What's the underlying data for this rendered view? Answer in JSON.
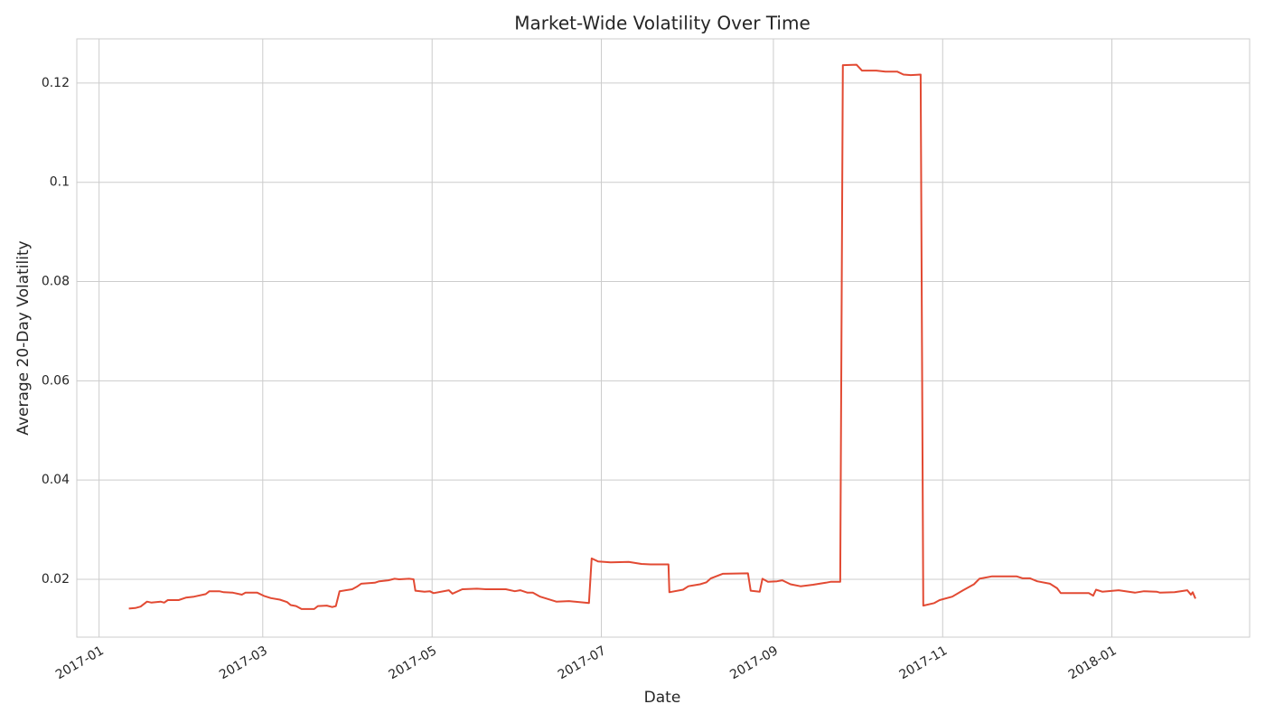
{
  "chart_data": {
    "type": "line",
    "title": "Market-Wide Volatility Over Time",
    "xlabel": "Date",
    "ylabel": "Average 20-Day Volatility",
    "color": "#e24a33",
    "grid": true,
    "xlim": [
      2016.978,
      2018.136
    ],
    "ylim": [
      0.00834,
      0.1289
    ],
    "xticks": [
      {
        "value": 2017,
        "label": "2017-01"
      },
      {
        "value": 2017.1616,
        "label": "2017-03"
      },
      {
        "value": 2017.3288,
        "label": "2017-05"
      },
      {
        "value": 2017.4959,
        "label": "2017-07"
      },
      {
        "value": 2017.6658,
        "label": "2017-09"
      },
      {
        "value": 2017.8329,
        "label": "2017-11"
      },
      {
        "value": 2018,
        "label": "2018-01"
      }
    ],
    "yticks": [
      0.02,
      0.04,
      0.06,
      0.08,
      0.1,
      0.12
    ],
    "x": [
      2017.0294,
      2017.0357,
      2017.041,
      2017.0473,
      2017.0518,
      2017.0607,
      2017.0643,
      2017.0678,
      2017.0785,
      2017.0857,
      2017.0937,
      2017.1053,
      2017.1089,
      2017.1187,
      2017.1231,
      2017.1321,
      2017.141,
      2017.1446,
      2017.1562,
      2017.1633,
      2017.1696,
      2017.1785,
      2017.1856,
      2017.1892,
      2017.1945,
      2017.1999,
      2017.2124,
      2017.216,
      2017.2249,
      2017.2302,
      2017.2338,
      2017.2374,
      2017.2499,
      2017.2552,
      2017.2588,
      2017.2722,
      2017.2766,
      2017.2856,
      2017.2918,
      2017.2963,
      2017.3061,
      2017.3105,
      2017.3123,
      2017.3213,
      2017.3266,
      2017.3302,
      2017.3454,
      2017.3489,
      2017.3587,
      2017.373,
      2017.3819,
      2017.4016,
      2017.4105,
      2017.4158,
      2017.423,
      2017.4283,
      2017.4355,
      2017.4515,
      2017.464,
      2017.4837,
      2017.4863,
      2017.4926,
      2017.5051,
      2017.5229,
      2017.5354,
      2017.5444,
      2017.5622,
      2017.5631,
      2017.5765,
      2017.5818,
      2017.5934,
      2017.5997,
      2017.6041,
      2017.6157,
      2017.6407,
      2017.6434,
      2017.6523,
      2017.655,
      2017.6604,
      2017.6693,
      2017.6746,
      2017.6827,
      2017.6925,
      2017.705,
      2017.7175,
      2017.7228,
      2017.7318,
      2017.7344,
      2017.7478,
      2017.7532,
      2017.7674,
      2017.7764,
      2017.788,
      2017.7942,
      2017.8014,
      2017.8112,
      2017.8138,
      2017.8246,
      2017.8299,
      2017.8424,
      2017.8531,
      2017.8638,
      2017.8692,
      2017.8817,
      2017.9058,
      2017.912,
      2017.9192,
      2017.9263,
      2017.9388,
      2017.9459,
      2017.9495,
      2017.9638,
      2017.9772,
      2017.9816,
      2017.9843,
      2017.9905,
      2018.0066,
      2018.0227,
      2018.0316,
      2018.0441,
      2018.0476,
      2018.0619,
      2018.0744,
      2018.078,
      2018.0798,
      2018.0825
    ],
    "values": [
      0.0141,
      0.0142,
      0.0145,
      0.0155,
      0.0153,
      0.0155,
      0.0153,
      0.0158,
      0.0158,
      0.0163,
      0.0165,
      0.017,
      0.0176,
      0.0176,
      0.0174,
      0.0173,
      0.0169,
      0.0173,
      0.0173,
      0.0166,
      0.0162,
      0.0159,
      0.0154,
      0.0148,
      0.0146,
      0.014,
      0.014,
      0.0146,
      0.0147,
      0.0144,
      0.0146,
      0.0176,
      0.018,
      0.0186,
      0.0191,
      0.0193,
      0.0196,
      0.0198,
      0.0201,
      0.02,
      0.0201,
      0.02,
      0.0177,
      0.0175,
      0.0176,
      0.0172,
      0.0178,
      0.0171,
      0.018,
      0.0181,
      0.018,
      0.018,
      0.0176,
      0.0178,
      0.0173,
      0.0173,
      0.0165,
      0.0155,
      0.0156,
      0.0152,
      0.0242,
      0.0236,
      0.0234,
      0.0235,
      0.0231,
      0.023,
      0.023,
      0.0174,
      0.0179,
      0.0186,
      0.019,
      0.0194,
      0.0202,
      0.0211,
      0.0212,
      0.0177,
      0.0175,
      0.0201,
      0.0195,
      0.0196,
      0.0198,
      0.019,
      0.0186,
      0.0189,
      0.0193,
      0.0195,
      0.0195,
      0.1236,
      0.1237,
      0.1225,
      0.1225,
      0.1223,
      0.1223,
      0.1217,
      0.1216,
      0.1217,
      0.0147,
      0.0152,
      0.0158,
      0.0165,
      0.0178,
      0.019,
      0.0201,
      0.0206,
      0.0206,
      0.0202,
      0.0202,
      0.0196,
      0.0191,
      0.0182,
      0.0172,
      0.0172,
      0.0172,
      0.0167,
      0.0179,
      0.0175,
      0.0178,
      0.0173,
      0.0176,
      0.0175,
      0.0173,
      0.0174,
      0.0178,
      0.0169,
      0.0174,
      0.0161
    ]
  }
}
